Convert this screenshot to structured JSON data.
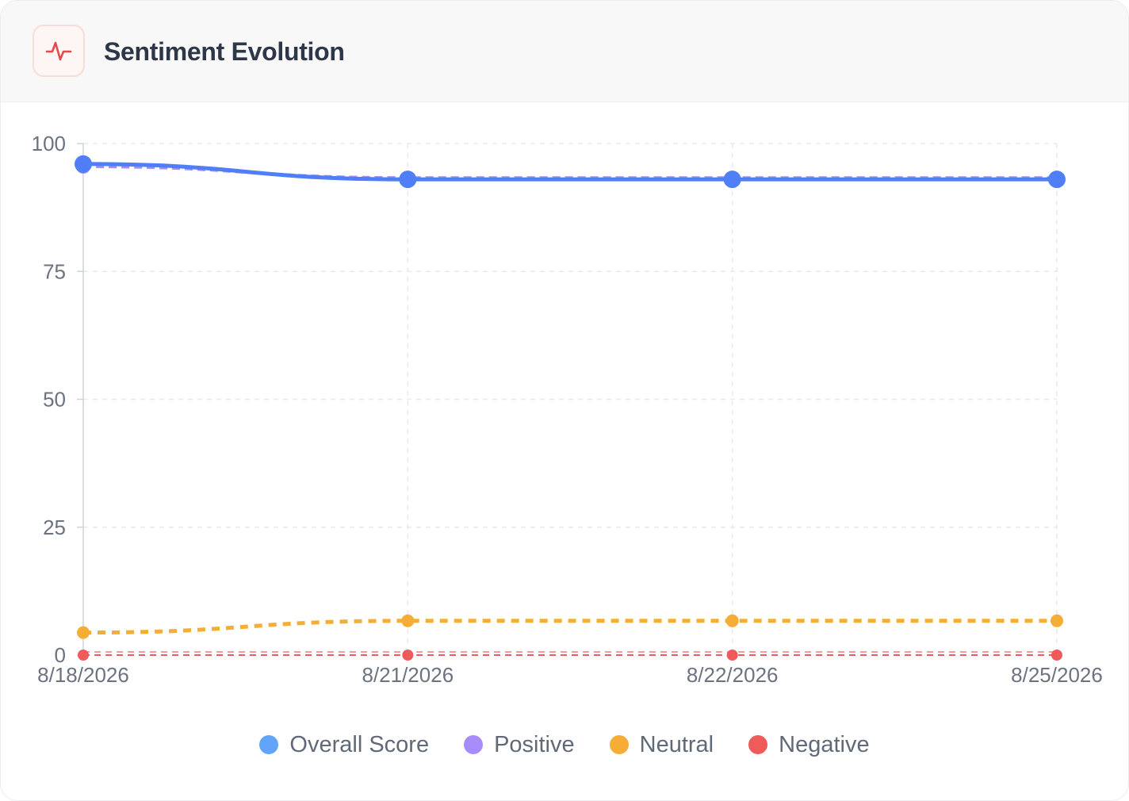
{
  "header": {
    "title": "Sentiment Evolution",
    "icon": "pulse-icon",
    "icon_color": "#e5484d"
  },
  "colors": {
    "axis": "#cfd3d8",
    "grid": "#e7e9ec",
    "tick_text": "#6b7280"
  },
  "chart_data": {
    "type": "line",
    "x": [
      "8/18/2026",
      "8/21/2026",
      "8/22/2026",
      "8/25/2026"
    ],
    "ylim": [
      0,
      100
    ],
    "yticks": [
      0,
      25,
      50,
      75,
      100
    ],
    "grid": true,
    "legend_position": "bottom",
    "series": [
      {
        "name": "Overall Score",
        "color": "#4f7ef7",
        "legend_color": "#60a5fa",
        "style": "solid",
        "values": [
          96,
          93,
          93,
          93
        ]
      },
      {
        "name": "Positive",
        "color": "#a78bfa",
        "legend_color": "#a78bfa",
        "style": "dashed",
        "values": [
          95.5,
          93.3,
          93.3,
          93.3
        ]
      },
      {
        "name": "Neutral",
        "color": "#f5ad35",
        "legend_color": "#f5ad35",
        "style": "dashed",
        "values": [
          4.4,
          6.7,
          6.7,
          6.7
        ]
      },
      {
        "name": "Negative",
        "color": "#ef5b5b",
        "legend_color": "#ef5b5b",
        "style": "dashed",
        "values": [
          0,
          0,
          0,
          0
        ]
      }
    ]
  }
}
